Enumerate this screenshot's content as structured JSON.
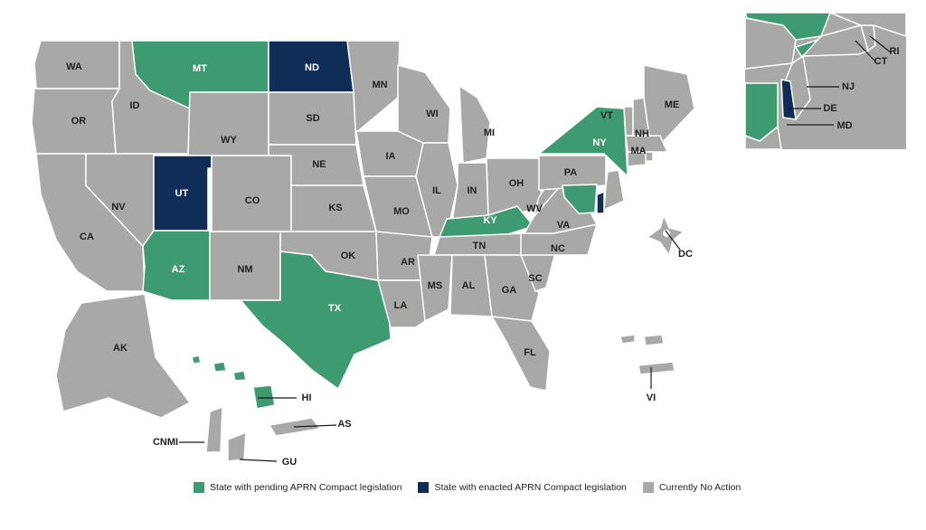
{
  "colors": {
    "pending": "#3e9a70",
    "enacted": "#0f2d57",
    "none": "#a8a8a6",
    "border": "#ffffff"
  },
  "legend": [
    {
      "key": "pending",
      "label": "State with pending APRN Compact legislation"
    },
    {
      "key": "enacted",
      "label": "State with enacted APRN Compact legislation"
    },
    {
      "key": "none",
      "label": "Currently No Action"
    }
  ],
  "states": {
    "WA": "none",
    "OR": "none",
    "CA": "none",
    "ID": "none",
    "NV": "none",
    "MT": "pending",
    "WY": "none",
    "UT": "enacted",
    "AZ": "pending",
    "CO": "none",
    "NM": "none",
    "ND": "enacted",
    "SD": "none",
    "NE": "none",
    "KS": "none",
    "OK": "none",
    "TX": "pending",
    "MN": "none",
    "IA": "none",
    "MO": "none",
    "AR": "none",
    "LA": "none",
    "WI": "none",
    "IL": "none",
    "MI": "none",
    "IN": "none",
    "OH": "none",
    "KY": "pending",
    "TN": "none",
    "MS": "none",
    "AL": "none",
    "GA": "none",
    "FL": "none",
    "SC": "none",
    "NC": "none",
    "VA": "none",
    "WV": "none",
    "PA": "none",
    "NY": "pending",
    "VT": "none",
    "NH": "none",
    "ME": "none",
    "MA": "none",
    "RI": "none",
    "CT": "none",
    "NJ": "none",
    "DE": "enacted",
    "MD": "pending",
    "DC": "none",
    "AK": "none",
    "HI": "pending",
    "VI": "none",
    "AS": "none",
    "GU": "none",
    "CNMI": "none"
  }
}
